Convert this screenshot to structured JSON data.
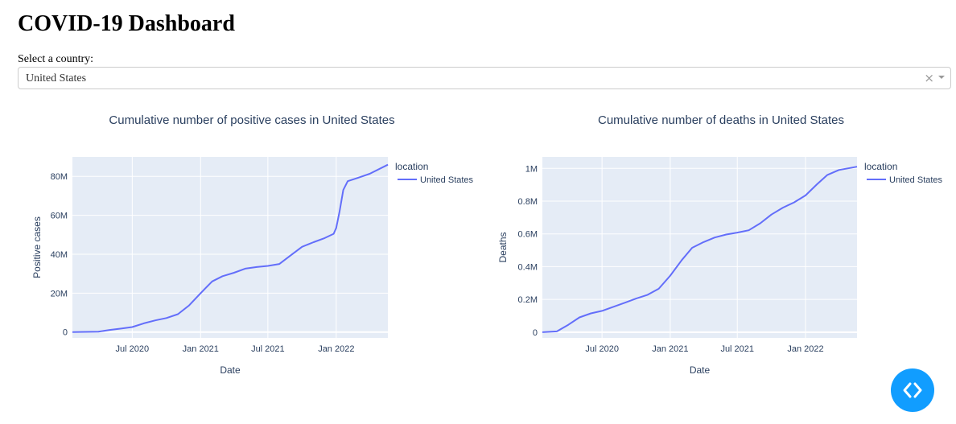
{
  "page": {
    "title": "COVID-19 Dashboard",
    "select_label": "Select a country:"
  },
  "country_select": {
    "value": "United States",
    "clear_symbol": "×"
  },
  "chart_data": [
    {
      "type": "line",
      "title": "Cumulative number of positive cases in United States",
      "xlabel": "Date",
      "ylabel": "Positive cases",
      "x_range": [
        "2020-01-22",
        "2022-05-20"
      ],
      "ylim": [
        -3000000,
        90000000
      ],
      "x_ticks": [
        {
          "date": "2020-07-01",
          "label": "Jul 2020"
        },
        {
          "date": "2021-01-01",
          "label": "Jan 2021"
        },
        {
          "date": "2021-07-01",
          "label": "Jul 2021"
        },
        {
          "date": "2022-01-01",
          "label": "Jan 2022"
        }
      ],
      "y_ticks": [
        {
          "value": 0,
          "label": "0"
        },
        {
          "value": 20000000,
          "label": "20M"
        },
        {
          "value": 40000000,
          "label": "40M"
        },
        {
          "value": 60000000,
          "label": "60M"
        },
        {
          "value": 80000000,
          "label": "80M"
        }
      ],
      "legend": {
        "title": "location",
        "position": "right"
      },
      "grid": true,
      "color": "#636efa",
      "series": [
        {
          "name": "United States",
          "x": [
            "2020-01-22",
            "2020-04-01",
            "2020-05-01",
            "2020-06-01",
            "2020-07-01",
            "2020-08-01",
            "2020-09-01",
            "2020-10-01",
            "2020-11-01",
            "2020-12-01",
            "2021-01-01",
            "2021-02-01",
            "2021-03-01",
            "2021-04-01",
            "2021-05-01",
            "2021-06-01",
            "2021-07-01",
            "2021-08-01",
            "2021-09-01",
            "2021-10-01",
            "2021-11-01",
            "2021-12-01",
            "2021-12-25",
            "2022-01-01",
            "2022-01-10",
            "2022-01-20",
            "2022-02-01",
            "2022-03-01",
            "2022-04-01",
            "2022-05-20"
          ],
          "values": [
            0,
            200000,
            1100000,
            1800000,
            2600000,
            4500000,
            6000000,
            7200000,
            9200000,
            13700000,
            20000000,
            26000000,
            28700000,
            30500000,
            32600000,
            33400000,
            34000000,
            35000000,
            39500000,
            43800000,
            46200000,
            48300000,
            50500000,
            53500000,
            62000000,
            73000000,
            77500000,
            79300000,
            81300000,
            86000000
          ]
        }
      ]
    },
    {
      "type": "line",
      "title": "Cumulative number of deaths in United States",
      "xlabel": "Date",
      "ylabel": "Deaths",
      "x_range": [
        "2020-01-22",
        "2022-05-20"
      ],
      "ylim": [
        -35000,
        1070000
      ],
      "x_ticks": [
        {
          "date": "2020-07-01",
          "label": "Jul 2020"
        },
        {
          "date": "2021-01-01",
          "label": "Jan 2021"
        },
        {
          "date": "2021-07-01",
          "label": "Jul 2021"
        },
        {
          "date": "2022-01-01",
          "label": "Jan 2022"
        }
      ],
      "y_ticks": [
        {
          "value": 0,
          "label": "0"
        },
        {
          "value": 200000,
          "label": "0.2M"
        },
        {
          "value": 400000,
          "label": "0.4M"
        },
        {
          "value": 600000,
          "label": "0.6M"
        },
        {
          "value": 800000,
          "label": "0.8M"
        },
        {
          "value": 1000000,
          "label": "1M"
        }
      ],
      "legend": {
        "title": "location",
        "position": "right"
      },
      "grid": true,
      "color": "#636efa",
      "series": [
        {
          "name": "United States",
          "x": [
            "2020-01-22",
            "2020-03-01",
            "2020-04-01",
            "2020-05-01",
            "2020-06-01",
            "2020-07-01",
            "2020-08-01",
            "2020-09-01",
            "2020-10-01",
            "2020-11-01",
            "2020-12-01",
            "2021-01-01",
            "2021-02-01",
            "2021-03-01",
            "2021-04-01",
            "2021-05-01",
            "2021-06-01",
            "2021-07-01",
            "2021-08-01",
            "2021-09-01",
            "2021-10-01",
            "2021-11-01",
            "2021-12-01",
            "2022-01-01",
            "2022-02-01",
            "2022-03-01",
            "2022-04-01",
            "2022-05-20"
          ],
          "values": [
            0,
            5000,
            45000,
            90000,
            115000,
            130000,
            155000,
            180000,
            205000,
            228000,
            265000,
            345000,
            440000,
            515000,
            550000,
            578000,
            596000,
            608000,
            622000,
            665000,
            718000,
            760000,
            792000,
            835000,
            903000,
            960000,
            990000,
            1010000
          ]
        }
      ]
    }
  ]
}
